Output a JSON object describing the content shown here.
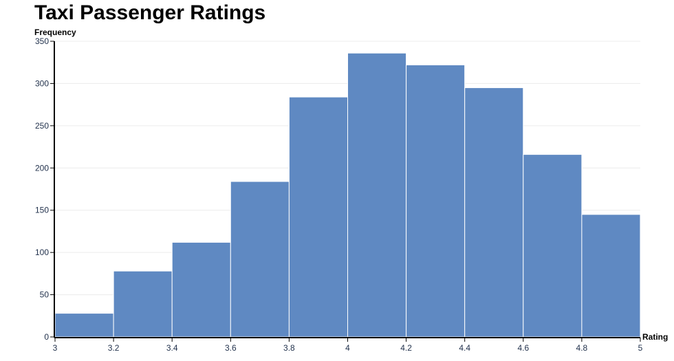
{
  "title": "Taxi Passenger Ratings",
  "chart_data": {
    "type": "histogram",
    "title": "Taxi Passenger Ratings",
    "xlabel": "Rating",
    "ylabel": "Frequency",
    "bin_edges": [
      3.0,
      3.2,
      3.4,
      3.6,
      3.8,
      4.0,
      4.2,
      4.4,
      4.6,
      4.8,
      5.0
    ],
    "values": [
      28,
      78,
      112,
      184,
      284,
      336,
      322,
      295,
      216,
      145
    ],
    "xlim": [
      3,
      5
    ],
    "ylim": [
      0,
      350
    ],
    "x_ticks": [
      "3",
      "3.2",
      "3.4",
      "3.6",
      "3.8",
      "4",
      "4.2",
      "4.4",
      "4.6",
      "4.8",
      "5"
    ],
    "y_ticks": [
      0,
      50,
      100,
      150,
      200,
      250,
      300,
      350
    ],
    "bar_color": "#5f89c2",
    "bar_edge_color": "#ffffff",
    "grid": true,
    "legend": false
  }
}
